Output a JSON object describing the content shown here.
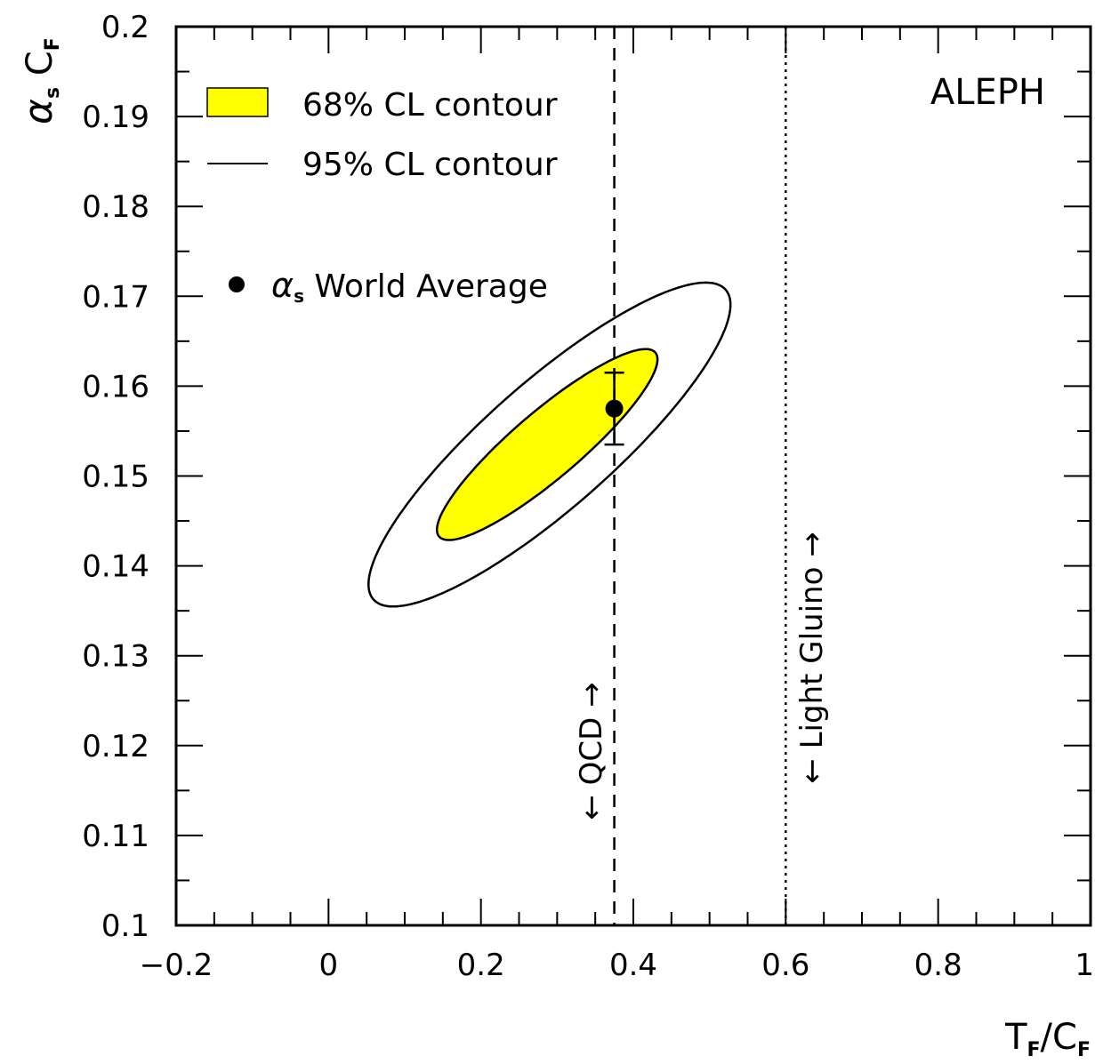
{
  "chart_data": {
    "type": "scatter",
    "experiment": "ALEPH",
    "xlabel": {
      "main": "T",
      "sub": "F",
      "sep": "/",
      "main2": "C",
      "sub2": "F"
    },
    "ylabel": {
      "main": "α",
      "sub": "s",
      "main2": "C",
      "sub2": "F"
    },
    "xlim": [
      -0.2,
      1.0
    ],
    "ylim": [
      0.1,
      0.2
    ],
    "x_ticks": [
      -0.2,
      0,
      0.2,
      0.4,
      0.6,
      0.8,
      1
    ],
    "x_tick_labels": [
      "−0.2",
      "0",
      "0.2",
      "0.4",
      "0.6",
      "0.8",
      "1"
    ],
    "y_ticks": [
      0.1,
      0.11,
      0.12,
      0.13,
      0.14,
      0.15,
      0.16,
      0.17,
      0.18,
      0.19,
      0.2
    ],
    "y_tick_labels": [
      "0.1",
      "0.11",
      "0.12",
      "0.13",
      "0.14",
      "0.15",
      "0.16",
      "0.17",
      "0.18",
      "0.19",
      "0.2"
    ],
    "grid": false,
    "legend": {
      "position": "top-left",
      "entries": [
        {
          "label": "68% CL contour",
          "style": "filled",
          "color": "#ffff00"
        },
        {
          "label": "95% CL contour",
          "style": "line",
          "color": "#000000"
        },
        {
          "label_prefix": "α",
          "label_sub": "s",
          "label": "World Average",
          "style": "marker"
        }
      ]
    },
    "contours": [
      {
        "name": "68% CL contour",
        "fill": "#ffff00",
        "center": [
          0.287,
          0.1535
        ],
        "semi_major": 0.145,
        "semi_minor": 0.0048,
        "slope": 0.0655
      },
      {
        "name": "95% CL contour",
        "fill": "none",
        "center": [
          0.29,
          0.1535
        ],
        "semi_major": 0.238,
        "semi_minor": 0.0091,
        "slope": 0.0655
      }
    ],
    "world_average": {
      "x": 0.375,
      "y": 0.1575,
      "yerr": 0.004
    },
    "reference_lines": [
      {
        "name": "QCD",
        "x": 0.375,
        "style": "dashed",
        "label": "QCD",
        "side": "left"
      },
      {
        "name": "Light Gluino",
        "x": 0.6,
        "style": "dotted",
        "label": "Light Gluino",
        "side": "right"
      }
    ],
    "arrows": {
      "up": "→",
      "down": "←"
    }
  }
}
